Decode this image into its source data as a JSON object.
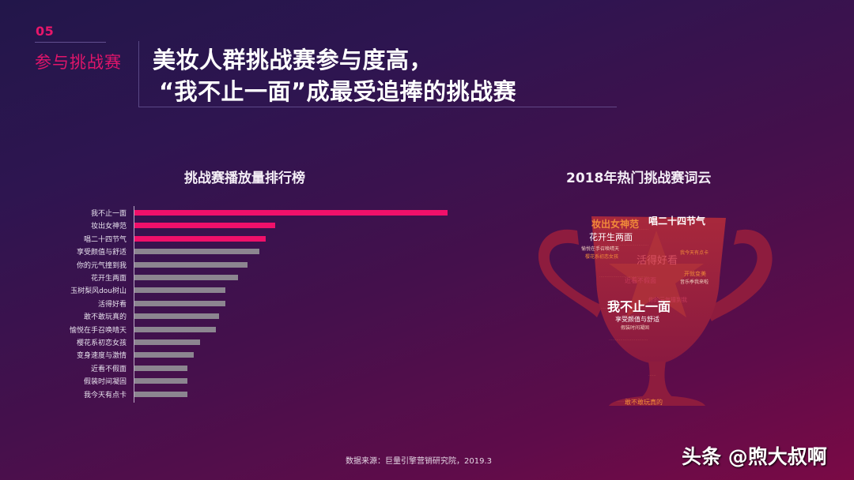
{
  "section": {
    "number": "05",
    "title": "参与挑战赛"
  },
  "headline": {
    "line1": "美妆人群挑战赛参与度高，",
    "line2": "“我不止一面”成最受追捧的挑战赛"
  },
  "colors": {
    "highlight": "#f0106a",
    "bar_default": "#8c8590",
    "section_accent": "#e0156a"
  },
  "chart_data": [
    {
      "type": "bar",
      "orientation": "horizontal",
      "title": "挑战赛播放量排行榜",
      "xlabel": "",
      "ylabel": "",
      "grid": false,
      "value_unit": "relative (pixel length, no axis ticks shown)",
      "categories": [
        "我不止一面",
        "妆出女神范",
        "唱二十四节气",
        "享受颜值与舒适",
        "你的元气撞到我",
        "花开生两面",
        "玉树梨风dou树山",
        "活得好看",
        "敢不敢玩真的",
        "愉悦在手召唤晴天",
        "樱花系初恋女孩",
        "变身速度与激情",
        "近看不假面",
        "假装时间凝固",
        "我今天有点卡"
      ],
      "values": [
        100,
        45,
        42,
        40,
        36,
        33,
        29,
        29,
        27,
        26,
        21,
        19,
        17,
        17,
        17
      ],
      "highlighted": [
        true,
        true,
        true,
        false,
        false,
        false,
        false,
        false,
        false,
        false,
        false,
        false,
        false,
        false,
        false
      ]
    },
    {
      "type": "wordcloud",
      "title": "2018年热门挑战赛词云",
      "shape": "trophy",
      "prominent_words": [
        "我不止一面",
        "妆出女神范",
        "唱二十四节气",
        "花开生两面",
        "活得好看",
        "享受颜值与舒适",
        "假装时间凝固",
        "你的元气撞到我",
        "敢不敢玩真的",
        "近看不假面",
        "愉悦在手召唤晴天",
        "樱花系初恋女孩",
        "我今天有点卡",
        "音乐季我来啦"
      ]
    }
  ],
  "footer": {
    "source": "数据来源：巨量引擎营销研究院，2019.3",
    "watermark": "头条 @煦大叔啊"
  }
}
